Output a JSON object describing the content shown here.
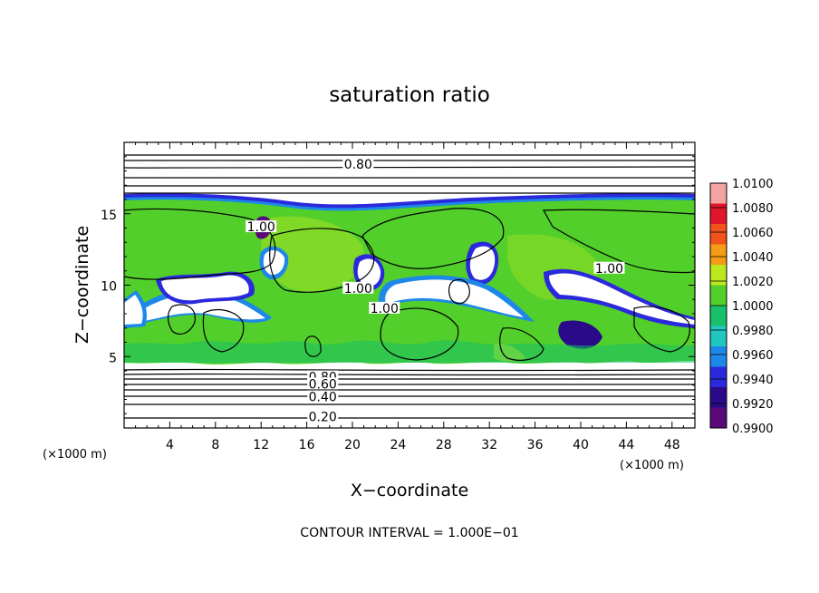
{
  "chart_data": {
    "type": "heatmap",
    "title": "saturation ratio",
    "xlabel": "X−coordinate",
    "ylabel": "Z−coordinate",
    "x_unit_left": "(×1000 m)",
    "x_unit_right": "(×1000 m)",
    "xlim": [
      0,
      50
    ],
    "ylim": [
      0,
      20
    ],
    "x_ticks": [
      4,
      8,
      12,
      16,
      20,
      24,
      28,
      32,
      36,
      40,
      44,
      48
    ],
    "y_ticks": [
      5,
      10,
      15
    ],
    "colorbar": {
      "levels": [
        "1.0100",
        "1.0080",
        "1.0060",
        "1.0040",
        "1.0020",
        "1.0000",
        "0.9980",
        "0.9960",
        "0.9940",
        "0.9920",
        "0.9900"
      ],
      "colors": [
        "#f4a3a3",
        "#e0162a",
        "#f2521c",
        "#f59c16",
        "#bce81e",
        "#52cf2a",
        "#18c06a",
        "#1fc7c0",
        "#1e88e8",
        "#2a2adc",
        "#2a0a88",
        "#5a0a78"
      ]
    },
    "contour_labels": [
      {
        "text": "0.80",
        "x": 20.5,
        "z": 18.3
      },
      {
        "text": "1.00",
        "x": 12,
        "z": 13.9
      },
      {
        "text": "1.00",
        "x": 20.5,
        "z": 9.6
      },
      {
        "text": "1.00",
        "x": 22.8,
        "z": 8.2
      },
      {
        "text": "1.00",
        "x": 42.5,
        "z": 11.0
      },
      {
        "text": "0.80",
        "x": 17.4,
        "z": 3.4
      },
      {
        "text": "0.60",
        "x": 17.4,
        "z": 2.9
      },
      {
        "text": "0.40",
        "x": 17.4,
        "z": 2.0
      },
      {
        "text": "0.20",
        "x": 17.4,
        "z": 0.6
      }
    ],
    "contour_levels": [
      0.2,
      0.4,
      0.6,
      0.8,
      1.0
    ],
    "contour_interval_note": "CONTOUR INTERVAL = 1.000E−01"
  }
}
